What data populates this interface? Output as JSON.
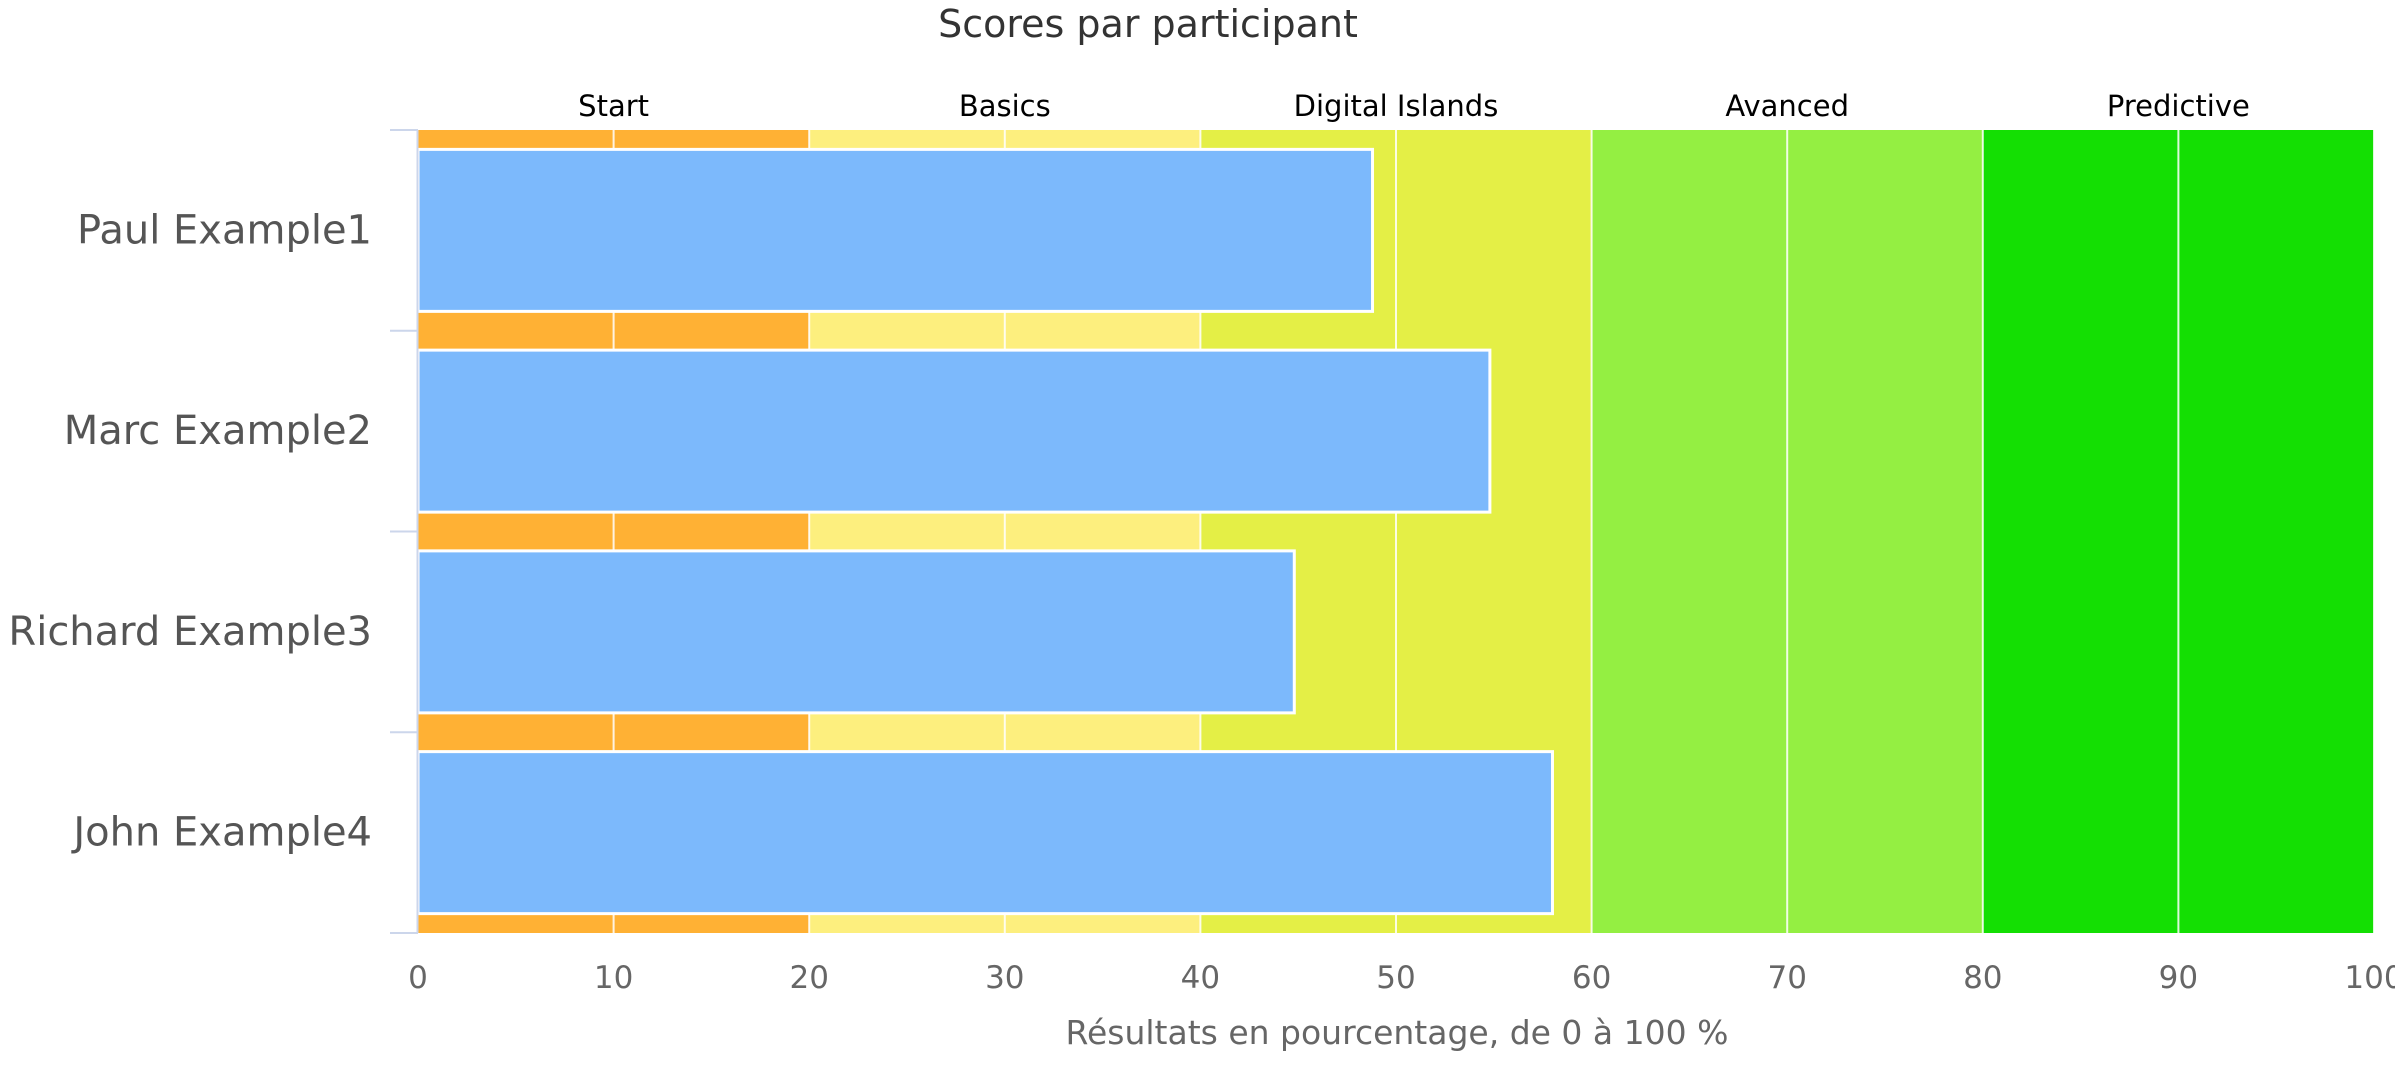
{
  "chart_data": {
    "type": "bar",
    "orientation": "horizontal",
    "title": "Scores par participant",
    "xlabel": "Résultats en pourcentage, de 0 à 100 %",
    "ylabel": "",
    "xlim": [
      0,
      100
    ],
    "x_ticks": [
      "0",
      "10",
      "20",
      "30",
      "40",
      "50",
      "60",
      "70",
      "80",
      "90",
      "100"
    ],
    "grid": "vertical",
    "legend": "none",
    "bar_color": "#7cb9fc",
    "categories": [
      "Paul Example1",
      "Marc Example2",
      "Richard Example3",
      "John Example4"
    ],
    "values": [
      48.8,
      54.8,
      44.8,
      58.0
    ],
    "bands": [
      {
        "label": "Start",
        "from": 0,
        "to": 20,
        "color": "#ffb134"
      },
      {
        "label": "Basics",
        "from": 20,
        "to": 40,
        "color": "#fdef7e"
      },
      {
        "label": "Digital Islands",
        "from": 40,
        "to": 60,
        "color": "#e4ef46"
      },
      {
        "label": "Avanced",
        "from": 60,
        "to": 80,
        "color": "#94ef42"
      },
      {
        "label": "Predictive",
        "from": 80,
        "to": 100,
        "color": "#14df03"
      }
    ]
  }
}
